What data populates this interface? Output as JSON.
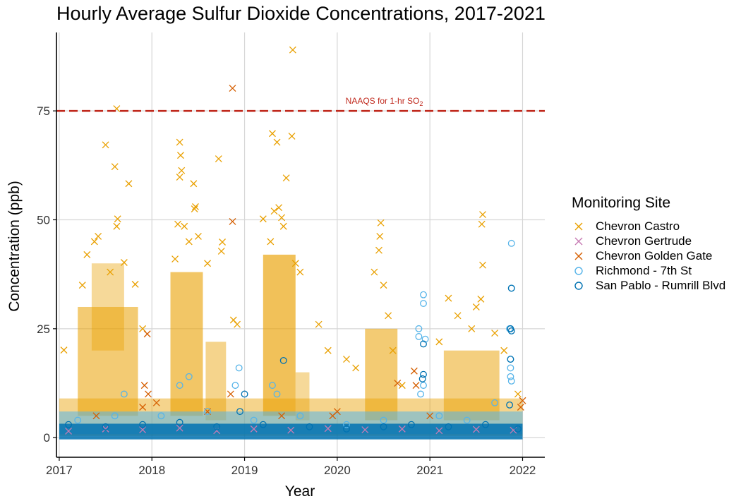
{
  "chart_data": {
    "type": "scatter",
    "title": "Hourly Average Sulfur Dioxide Concentrations, 2017-2021",
    "xlabel": "Year",
    "ylabel": "Concentration (ppb)",
    "xlim": [
      2016.97,
      2022.24
    ],
    "ylim": [
      -4.5,
      93
    ],
    "x_ticks": [
      2017,
      2018,
      2019,
      2020,
      2021,
      2022
    ],
    "x_tick_labels": [
      "2017",
      "2018",
      "2019",
      "2020",
      "2021",
      "2022"
    ],
    "y_ticks": [
      0,
      25,
      50,
      75
    ],
    "y_tick_labels": [
      "0",
      "25",
      "50",
      "75"
    ],
    "grid": true,
    "legend": {
      "title": "Monitoring Site",
      "position": "right"
    },
    "reference_line": {
      "y": 75,
      "label": "NAAQS for 1-hr SO",
      "label_subscript": "2",
      "color": "#c0281c",
      "style": "dashed"
    },
    "series": [
      {
        "name": "Chevron Castro",
        "marker": "x",
        "color": "#e9a000",
        "points": [
          [
            2017.62,
            75.5
          ],
          [
            2017.5,
            67.2
          ],
          [
            2017.6,
            62.2
          ],
          [
            2017.75,
            58.3
          ],
          [
            2017.63,
            50.2
          ],
          [
            2017.62,
            48.5
          ],
          [
            2017.42,
            46.2
          ],
          [
            2017.38,
            45.0
          ],
          [
            2017.3,
            42.0
          ],
          [
            2017.7,
            40.2
          ],
          [
            2017.55,
            38.0
          ],
          [
            2017.25,
            35.0
          ],
          [
            2017.05,
            20.1
          ],
          [
            2017.82,
            35.2
          ],
          [
            2017.9,
            25.0
          ],
          [
            2018.3,
            67.8
          ],
          [
            2018.31,
            64.8
          ],
          [
            2018.32,
            61.3
          ],
          [
            2018.3,
            59.8
          ],
          [
            2018.45,
            58.3
          ],
          [
            2018.47,
            53.0
          ],
          [
            2018.46,
            52.5
          ],
          [
            2018.5,
            46.2
          ],
          [
            2018.28,
            49.0
          ],
          [
            2018.35,
            48.5
          ],
          [
            2018.72,
            64.0
          ],
          [
            2018.76,
            44.9
          ],
          [
            2018.75,
            42.8
          ],
          [
            2018.6,
            40.0
          ],
          [
            2018.4,
            45.0
          ],
          [
            2018.25,
            41.0
          ],
          [
            2018.88,
            27.0
          ],
          [
            2018.92,
            26.0
          ],
          [
            2019.3,
            69.8
          ],
          [
            2019.35,
            67.8
          ],
          [
            2019.52,
            89.0
          ],
          [
            2019.51,
            69.2
          ],
          [
            2019.45,
            59.6
          ],
          [
            2019.2,
            50.2
          ],
          [
            2019.32,
            52.0
          ],
          [
            2019.37,
            52.8
          ],
          [
            2019.4,
            50.5
          ],
          [
            2019.42,
            48.5
          ],
          [
            2019.28,
            45.0
          ],
          [
            2019.55,
            40.0
          ],
          [
            2019.6,
            38.0
          ],
          [
            2019.8,
            26.0
          ],
          [
            2019.9,
            20.0
          ],
          [
            2020.1,
            18.0
          ],
          [
            2020.2,
            16.0
          ],
          [
            2020.47,
            49.3
          ],
          [
            2020.46,
            46.2
          ],
          [
            2020.45,
            43.0
          ],
          [
            2020.4,
            38.0
          ],
          [
            2020.5,
            35.0
          ],
          [
            2020.55,
            28.0
          ],
          [
            2020.6,
            20.0
          ],
          [
            2020.7,
            12.0
          ],
          [
            2021.2,
            32.0
          ],
          [
            2021.3,
            28.0
          ],
          [
            2021.1,
            22.0
          ],
          [
            2021.57,
            51.2
          ],
          [
            2021.56,
            49.0
          ],
          [
            2021.57,
            39.6
          ],
          [
            2021.55,
            31.8
          ],
          [
            2021.5,
            30.0
          ],
          [
            2021.45,
            25.0
          ],
          [
            2021.7,
            24.0
          ],
          [
            2021.8,
            20.0
          ],
          [
            2021.95,
            10.0
          ]
        ]
      },
      {
        "name": "Chevron Gertrude",
        "marker": "x",
        "color": "#c77cb4",
        "points": [
          [
            2017.1,
            1.5
          ],
          [
            2017.5,
            2.0
          ],
          [
            2017.9,
            1.8
          ],
          [
            2018.3,
            2.2
          ],
          [
            2018.7,
            1.6
          ],
          [
            2019.1,
            2.0
          ],
          [
            2019.5,
            1.7
          ],
          [
            2019.9,
            2.1
          ],
          [
            2020.3,
            1.8
          ],
          [
            2020.7,
            2.0
          ],
          [
            2021.1,
            1.6
          ],
          [
            2021.5,
            1.9
          ],
          [
            2021.9,
            1.7
          ]
        ]
      },
      {
        "name": "Chevron Golden Gate",
        "marker": "x",
        "color": "#d55e00",
        "points": [
          [
            2018.87,
            80.2
          ],
          [
            2018.87,
            49.6
          ],
          [
            2017.95,
            23.8
          ],
          [
            2017.92,
            12.0
          ],
          [
            2017.96,
            10.0
          ],
          [
            2018.05,
            8.0
          ],
          [
            2017.9,
            7.0
          ],
          [
            2018.85,
            10.0
          ],
          [
            2020.83,
            15.3
          ],
          [
            2020.85,
            12.0
          ],
          [
            2020.65,
            12.5
          ],
          [
            2020.0,
            6.0
          ],
          [
            2019.95,
            5.0
          ],
          [
            2021.0,
            5.0
          ],
          [
            2022.0,
            8.5
          ],
          [
            2021.98,
            7.0
          ],
          [
            2017.4,
            5.0
          ],
          [
            2018.6,
            6.0
          ],
          [
            2019.4,
            5.0
          ]
        ]
      },
      {
        "name": "Richmond - 7th St",
        "marker": "circle",
        "color": "#56b4e9",
        "points": [
          [
            2021.88,
            44.6
          ],
          [
            2021.88,
            34.3
          ],
          [
            2020.93,
            32.8
          ],
          [
            2020.93,
            30.8
          ],
          [
            2020.88,
            25.0
          ],
          [
            2020.88,
            23.2
          ],
          [
            2020.95,
            22.6
          ],
          [
            2021.86,
            25.0
          ],
          [
            2021.87,
            18.0
          ],
          [
            2021.87,
            16.0
          ],
          [
            2021.87,
            14.0
          ],
          [
            2021.88,
            13.0
          ],
          [
            2018.94,
            16.0
          ],
          [
            2018.9,
            12.0
          ],
          [
            2018.4,
            14.0
          ],
          [
            2018.3,
            12.0
          ],
          [
            2017.7,
            10.0
          ],
          [
            2019.3,
            12.0
          ],
          [
            2019.35,
            10.0
          ],
          [
            2020.93,
            12.0
          ],
          [
            2020.9,
            10.0
          ],
          [
            2021.7,
            8.0
          ],
          [
            2017.2,
            4.0
          ],
          [
            2017.6,
            5.0
          ],
          [
            2018.1,
            5.0
          ],
          [
            2018.6,
            6.0
          ],
          [
            2019.1,
            4.0
          ],
          [
            2019.6,
            5.0
          ],
          [
            2020.1,
            3.0
          ],
          [
            2020.5,
            4.0
          ],
          [
            2021.1,
            5.0
          ],
          [
            2021.4,
            4.0
          ]
        ]
      },
      {
        "name": "San Pablo - Rumrill Blvd",
        "marker": "circle",
        "color": "#0072b2",
        "points": [
          [
            2021.88,
            34.3
          ],
          [
            2021.88,
            24.5
          ],
          [
            2021.87,
            25.0
          ],
          [
            2020.93,
            21.5
          ],
          [
            2020.93,
            14.5
          ],
          [
            2020.92,
            13.5
          ],
          [
            2019.42,
            17.7
          ],
          [
            2021.87,
            18.0
          ],
          [
            2021.86,
            7.5
          ],
          [
            2019.0,
            10.0
          ],
          [
            2018.95,
            6.0
          ],
          [
            2017.1,
            3.0
          ],
          [
            2017.5,
            2.5
          ],
          [
            2017.9,
            3.0
          ],
          [
            2018.3,
            3.5
          ],
          [
            2018.7,
            2.5
          ],
          [
            2019.2,
            3.0
          ],
          [
            2019.7,
            2.5
          ],
          [
            2020.1,
            2.0
          ],
          [
            2020.5,
            2.5
          ],
          [
            2020.8,
            3.0
          ],
          [
            2021.2,
            2.5
          ],
          [
            2021.6,
            3.0
          ],
          [
            2021.95,
            2.0
          ]
        ]
      }
    ]
  }
}
